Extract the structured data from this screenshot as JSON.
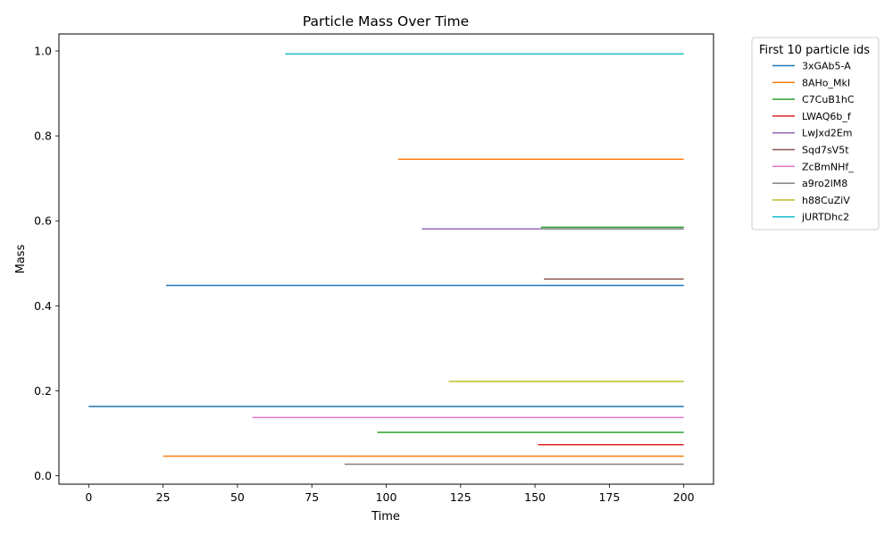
{
  "chart_data": {
    "type": "line",
    "title": "Particle Mass Over Time",
    "xlabel": "Time",
    "ylabel": "Mass",
    "xlim": [
      -10,
      210
    ],
    "ylim": [
      -0.02,
      1.04
    ],
    "xticks": [
      0,
      25,
      50,
      75,
      100,
      125,
      150,
      175,
      200
    ],
    "yticks": [
      0.0,
      0.2,
      0.4,
      0.6,
      0.8,
      1.0
    ],
    "xtick_labels": [
      "0",
      "25",
      "50",
      "75",
      "100",
      "125",
      "150",
      "175",
      "200"
    ],
    "ytick_labels": [
      "0.0",
      "0.2",
      "0.4",
      "0.6",
      "0.8",
      "1.0"
    ],
    "grid": false,
    "legend": {
      "title": "First 10 particle ids",
      "placement": "outside-right",
      "entries": [
        "3xGAb5-A",
        "8AHo_MkI",
        "C7CuB1hC",
        "LWAQ6b_f",
        "LwJxd2Em",
        "Sqd7sV5t",
        "ZcBmNHf_",
        "a9ro2lM8",
        "h88CuZiV",
        "jURTDhc2"
      ]
    },
    "colors": [
      "#1f77b4",
      "#ff7f0e",
      "#2ca02c",
      "#d62728",
      "#9467bd",
      "#8c564b",
      "#e377c2",
      "#7f7f7f",
      "#bcbd22",
      "#17becf"
    ],
    "series": [
      {
        "color_index": 9,
        "x": [
          66,
          200
        ],
        "y": [
          0.993,
          0.993
        ]
      },
      {
        "color_index": 1,
        "x": [
          104,
          200
        ],
        "y": [
          0.745,
          0.745
        ]
      },
      {
        "color_index": 2,
        "x": [
          152,
          200
        ],
        "y": [
          0.585,
          0.585
        ]
      },
      {
        "color_index": 4,
        "x": [
          112,
          200
        ],
        "y": [
          0.581,
          0.581
        ]
      },
      {
        "color_index": 7,
        "x": [
          152,
          200
        ],
        "y": [
          0.581,
          0.581
        ]
      },
      {
        "color_index": 5,
        "x": [
          153,
          200
        ],
        "y": [
          0.463,
          0.463
        ]
      },
      {
        "color_index": 0,
        "x": [
          26,
          200
        ],
        "y": [
          0.448,
          0.448
        ]
      },
      {
        "color_index": 8,
        "x": [
          121,
          200
        ],
        "y": [
          0.222,
          0.222
        ]
      },
      {
        "color_index": 0,
        "x": [
          0,
          200
        ],
        "y": [
          0.163,
          0.163
        ]
      },
      {
        "color_index": 6,
        "x": [
          55,
          200
        ],
        "y": [
          0.137,
          0.137
        ]
      },
      {
        "color_index": 2,
        "x": [
          97,
          200
        ],
        "y": [
          0.102,
          0.102
        ]
      },
      {
        "color_index": 3,
        "x": [
          151,
          200
        ],
        "y": [
          0.073,
          0.073
        ]
      },
      {
        "color_index": 1,
        "x": [
          25,
          200
        ],
        "y": [
          0.046,
          0.046
        ]
      },
      {
        "color_index": 7,
        "x": [
          86,
          200
        ],
        "y": [
          0.027,
          0.027
        ]
      }
    ]
  }
}
